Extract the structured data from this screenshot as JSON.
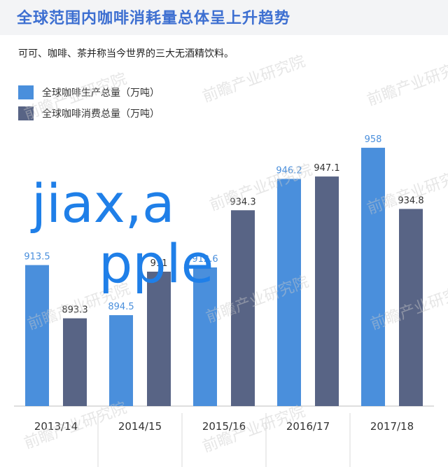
{
  "header": {
    "title": "全球范围内咖啡消耗量总体呈上升趋势",
    "subtitle": "可可、咖啡、茶并称当今世界的三大无酒精饮料。"
  },
  "overlay_text": {
    "line1": "jiax,a",
    "line2": "pple"
  },
  "watermark_text": "前瞻产业研究院",
  "colors": {
    "title": "#3d6fd1",
    "production": "#4a8fdc",
    "consumption": "#586485",
    "overlay": "#1f7fe8",
    "grid": "#d9d9d9"
  },
  "chart_data": {
    "type": "bar",
    "categories": [
      "2013/14",
      "2014/15",
      "2015/16",
      "2016/17",
      "2017/18"
    ],
    "series": [
      {
        "name": "全球咖啡生产总量（万吨）",
        "values": [
          913.5,
          894.5,
          912.6,
          946.2,
          958
        ],
        "labels": [
          "913.5",
          "894.5",
          "912.6",
          "946.2",
          "958"
        ]
      },
      {
        "name": "全球咖啡消费总量（万吨）",
        "values": [
          893.3,
          911,
          934.3,
          947.1,
          934.8
        ],
        "labels": [
          "893.3",
          "911",
          "934.3",
          "947.1",
          "934.8"
        ]
      }
    ],
    "ylim": [
      860,
      962
    ],
    "grid": false,
    "legend": "top-left"
  }
}
